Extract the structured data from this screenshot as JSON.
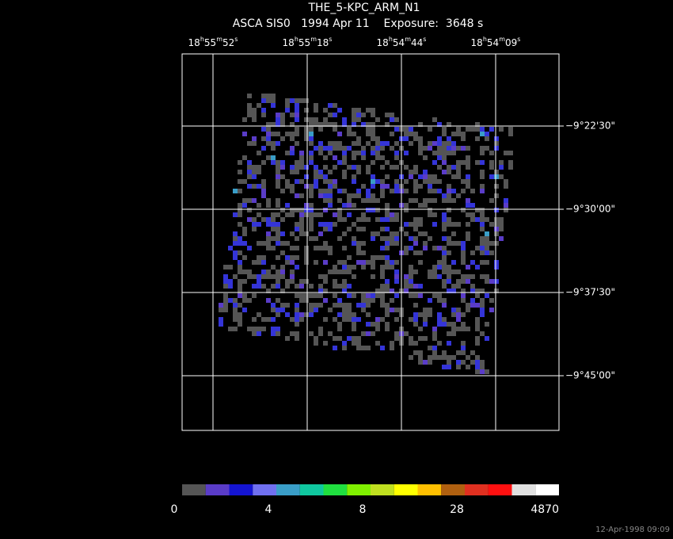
{
  "title": "THE_5-KPC_ARM_N1",
  "subtitle": "ASCA SIS0   1994 Apr 11    Exposure:  3648 s",
  "ra_labels": [
    [
      "18",
      "h",
      "55",
      "m",
      "52",
      "s"
    ],
    [
      "18",
      "h",
      "55",
      "m",
      "18",
      "s"
    ],
    [
      "18",
      "h",
      "54",
      "m",
      "44",
      "s"
    ],
    [
      "18",
      "h",
      "54",
      "m",
      "09",
      "s"
    ]
  ],
  "dec_labels": [
    "−9°22'30\"",
    "−9°30'00\"",
    "−9°37'30\"",
    "−9°45'00\""
  ],
  "colorbar": {
    "colors": [
      "#555555",
      "#5a3cc8",
      "#1414d2",
      "#7070f0",
      "#3a9ec8",
      "#10c8a0",
      "#20e040",
      "#80f000",
      "#c0e020",
      "#ffff00",
      "#ffc000",
      "#b06010",
      "#e03020",
      "#ff1010",
      "#e0e0e0",
      "#ffffff"
    ],
    "labels": [
      "0",
      "4",
      "8",
      "28",
      "4870"
    ]
  },
  "timestamp": "12-Apr-1998 09:09"
}
